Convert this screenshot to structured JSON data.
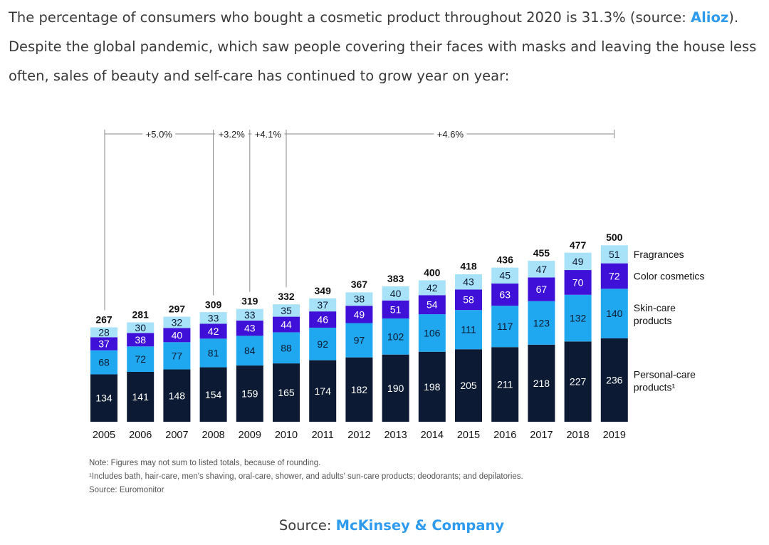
{
  "intro": {
    "sentence1_before": "The percentage of consumers who bought a cosmetic product throughout 2020 is 31.3% (source: ",
    "sentence1_link": "Alioz",
    "sentence1_after": ").",
    "sentence2": "Despite the global pandemic, which saw people covering their faces with masks and leaving the house less often, sales of beauty and self-care has continued to grow year on year:"
  },
  "source": {
    "prefix": "Source: ",
    "link": "McKinsey & Company"
  },
  "colors": {
    "personal_care": "#0c1b33",
    "skin_care": "#1fa8f0",
    "color_cosmetics": "#3e10d8",
    "fragrances": "#a8e2f9",
    "link": "#2e9bef"
  },
  "chart_data": {
    "type": "bar",
    "stacked": true,
    "categories": [
      "2005",
      "2006",
      "2007",
      "2008",
      "2009",
      "2010",
      "2011",
      "2012",
      "2013",
      "2014",
      "2015",
      "2016",
      "2017",
      "2018",
      "2019"
    ],
    "series": [
      {
        "name": "Personal-care products¹",
        "color": "#0c1b33",
        "values": [
          134,
          141,
          148,
          154,
          159,
          165,
          174,
          182,
          190,
          198,
          205,
          211,
          218,
          227,
          236
        ]
      },
      {
        "name": "Skin-care products",
        "color": "#1fa8f0",
        "values": [
          68,
          72,
          77,
          81,
          84,
          88,
          92,
          97,
          102,
          106,
          111,
          117,
          123,
          132,
          140
        ]
      },
      {
        "name": "Color cosmetics",
        "color": "#3e10d8",
        "values": [
          37,
          38,
          40,
          42,
          43,
          44,
          46,
          49,
          51,
          54,
          58,
          63,
          67,
          70,
          72
        ]
      },
      {
        "name": "Fragrances",
        "color": "#a8e2f9",
        "values": [
          28,
          30,
          32,
          33,
          33,
          35,
          37,
          38,
          40,
          42,
          43,
          45,
          47,
          49,
          51
        ]
      }
    ],
    "totals": [
      267,
      281,
      297,
      309,
      319,
      332,
      349,
      367,
      383,
      400,
      418,
      436,
      455,
      477,
      500
    ],
    "growth_annotations": [
      {
        "label": "+5.0%",
        "from": "2005",
        "to": "2008"
      },
      {
        "label": "+3.2%",
        "from": "2008",
        "to": "2009"
      },
      {
        "label": "+4.1%",
        "from": "2009",
        "to": "2010"
      },
      {
        "label": "+4.6%",
        "from": "2010",
        "to": "2019"
      }
    ],
    "legend_position": "right",
    "grid": false,
    "notes": [
      "Note: Figures may not sum to listed totals, because of rounding.",
      "¹Includes bath, hair-care, men's shaving, oral-care, shower, and adults' sun-care products; deodorants; and depilatories.",
      "Source: Euromonitor"
    ]
  }
}
